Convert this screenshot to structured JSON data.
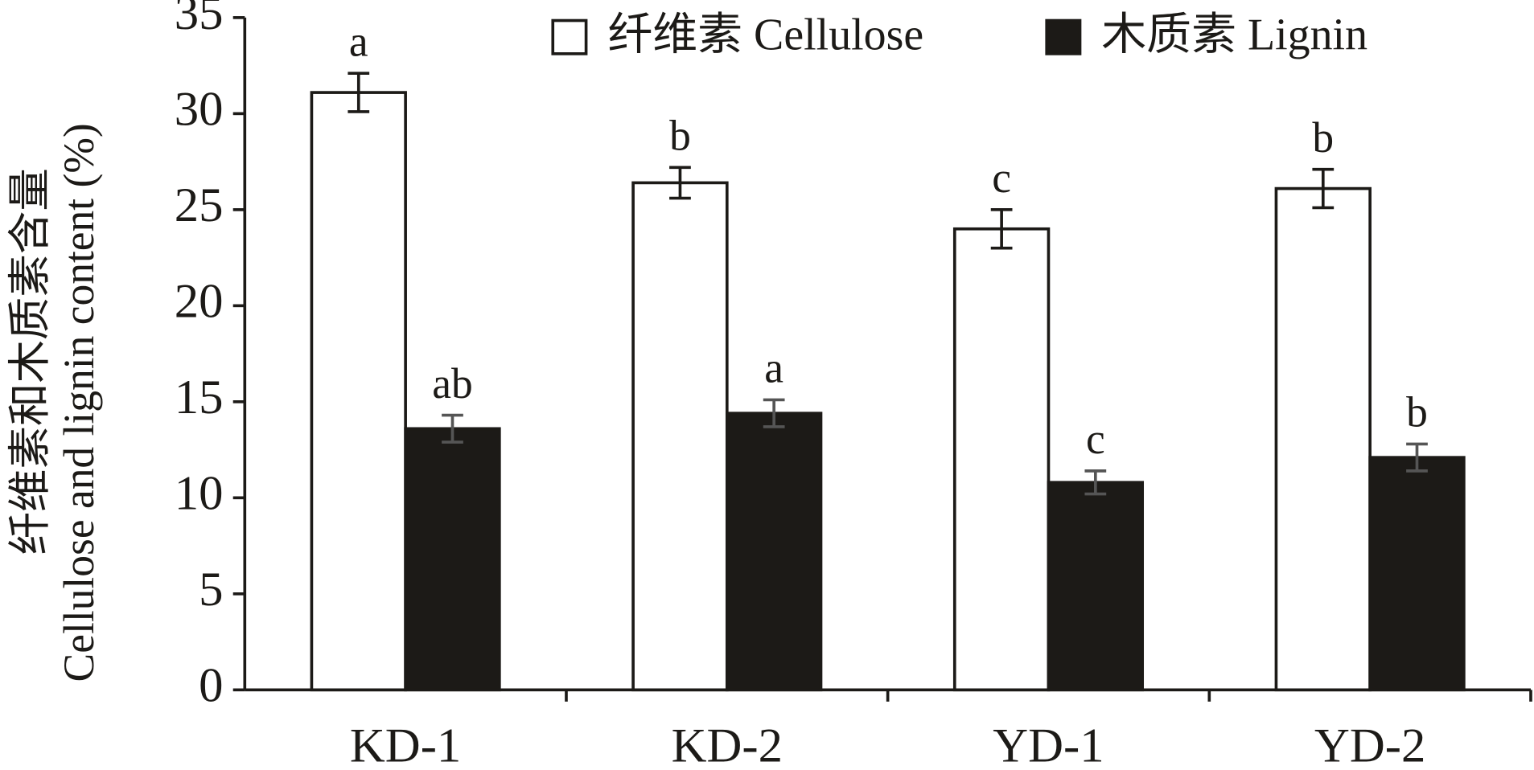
{
  "chart_data": {
    "type": "bar",
    "y_label": [
      "纤维素和木质素含量",
      "Cellulose and lignin content (%)"
    ],
    "categories": [
      "KD-1",
      "KD-2",
      "YD-1",
      "YD-2"
    ],
    "series": [
      {
        "name": "纤维素 Cellulose",
        "color": "#ffffff",
        "values": [
          31.1,
          26.4,
          24.0,
          26.1
        ],
        "errors": [
          1.0,
          0.8,
          1.0,
          1.0
        ],
        "labels": [
          "a",
          "b",
          "c",
          "b"
        ]
      },
      {
        "name": "木质素 Lignin",
        "color": "#1c1a17",
        "values": [
          13.6,
          14.4,
          10.8,
          12.1
        ],
        "errors": [
          0.7,
          0.7,
          0.6,
          0.7
        ],
        "labels": [
          "ab",
          "a",
          "c",
          "b"
        ]
      }
    ],
    "ylim": [
      0,
      35
    ],
    "yticks": [
      0,
      5,
      10,
      15,
      20,
      25,
      30,
      35
    ],
    "legend": "top-right"
  }
}
